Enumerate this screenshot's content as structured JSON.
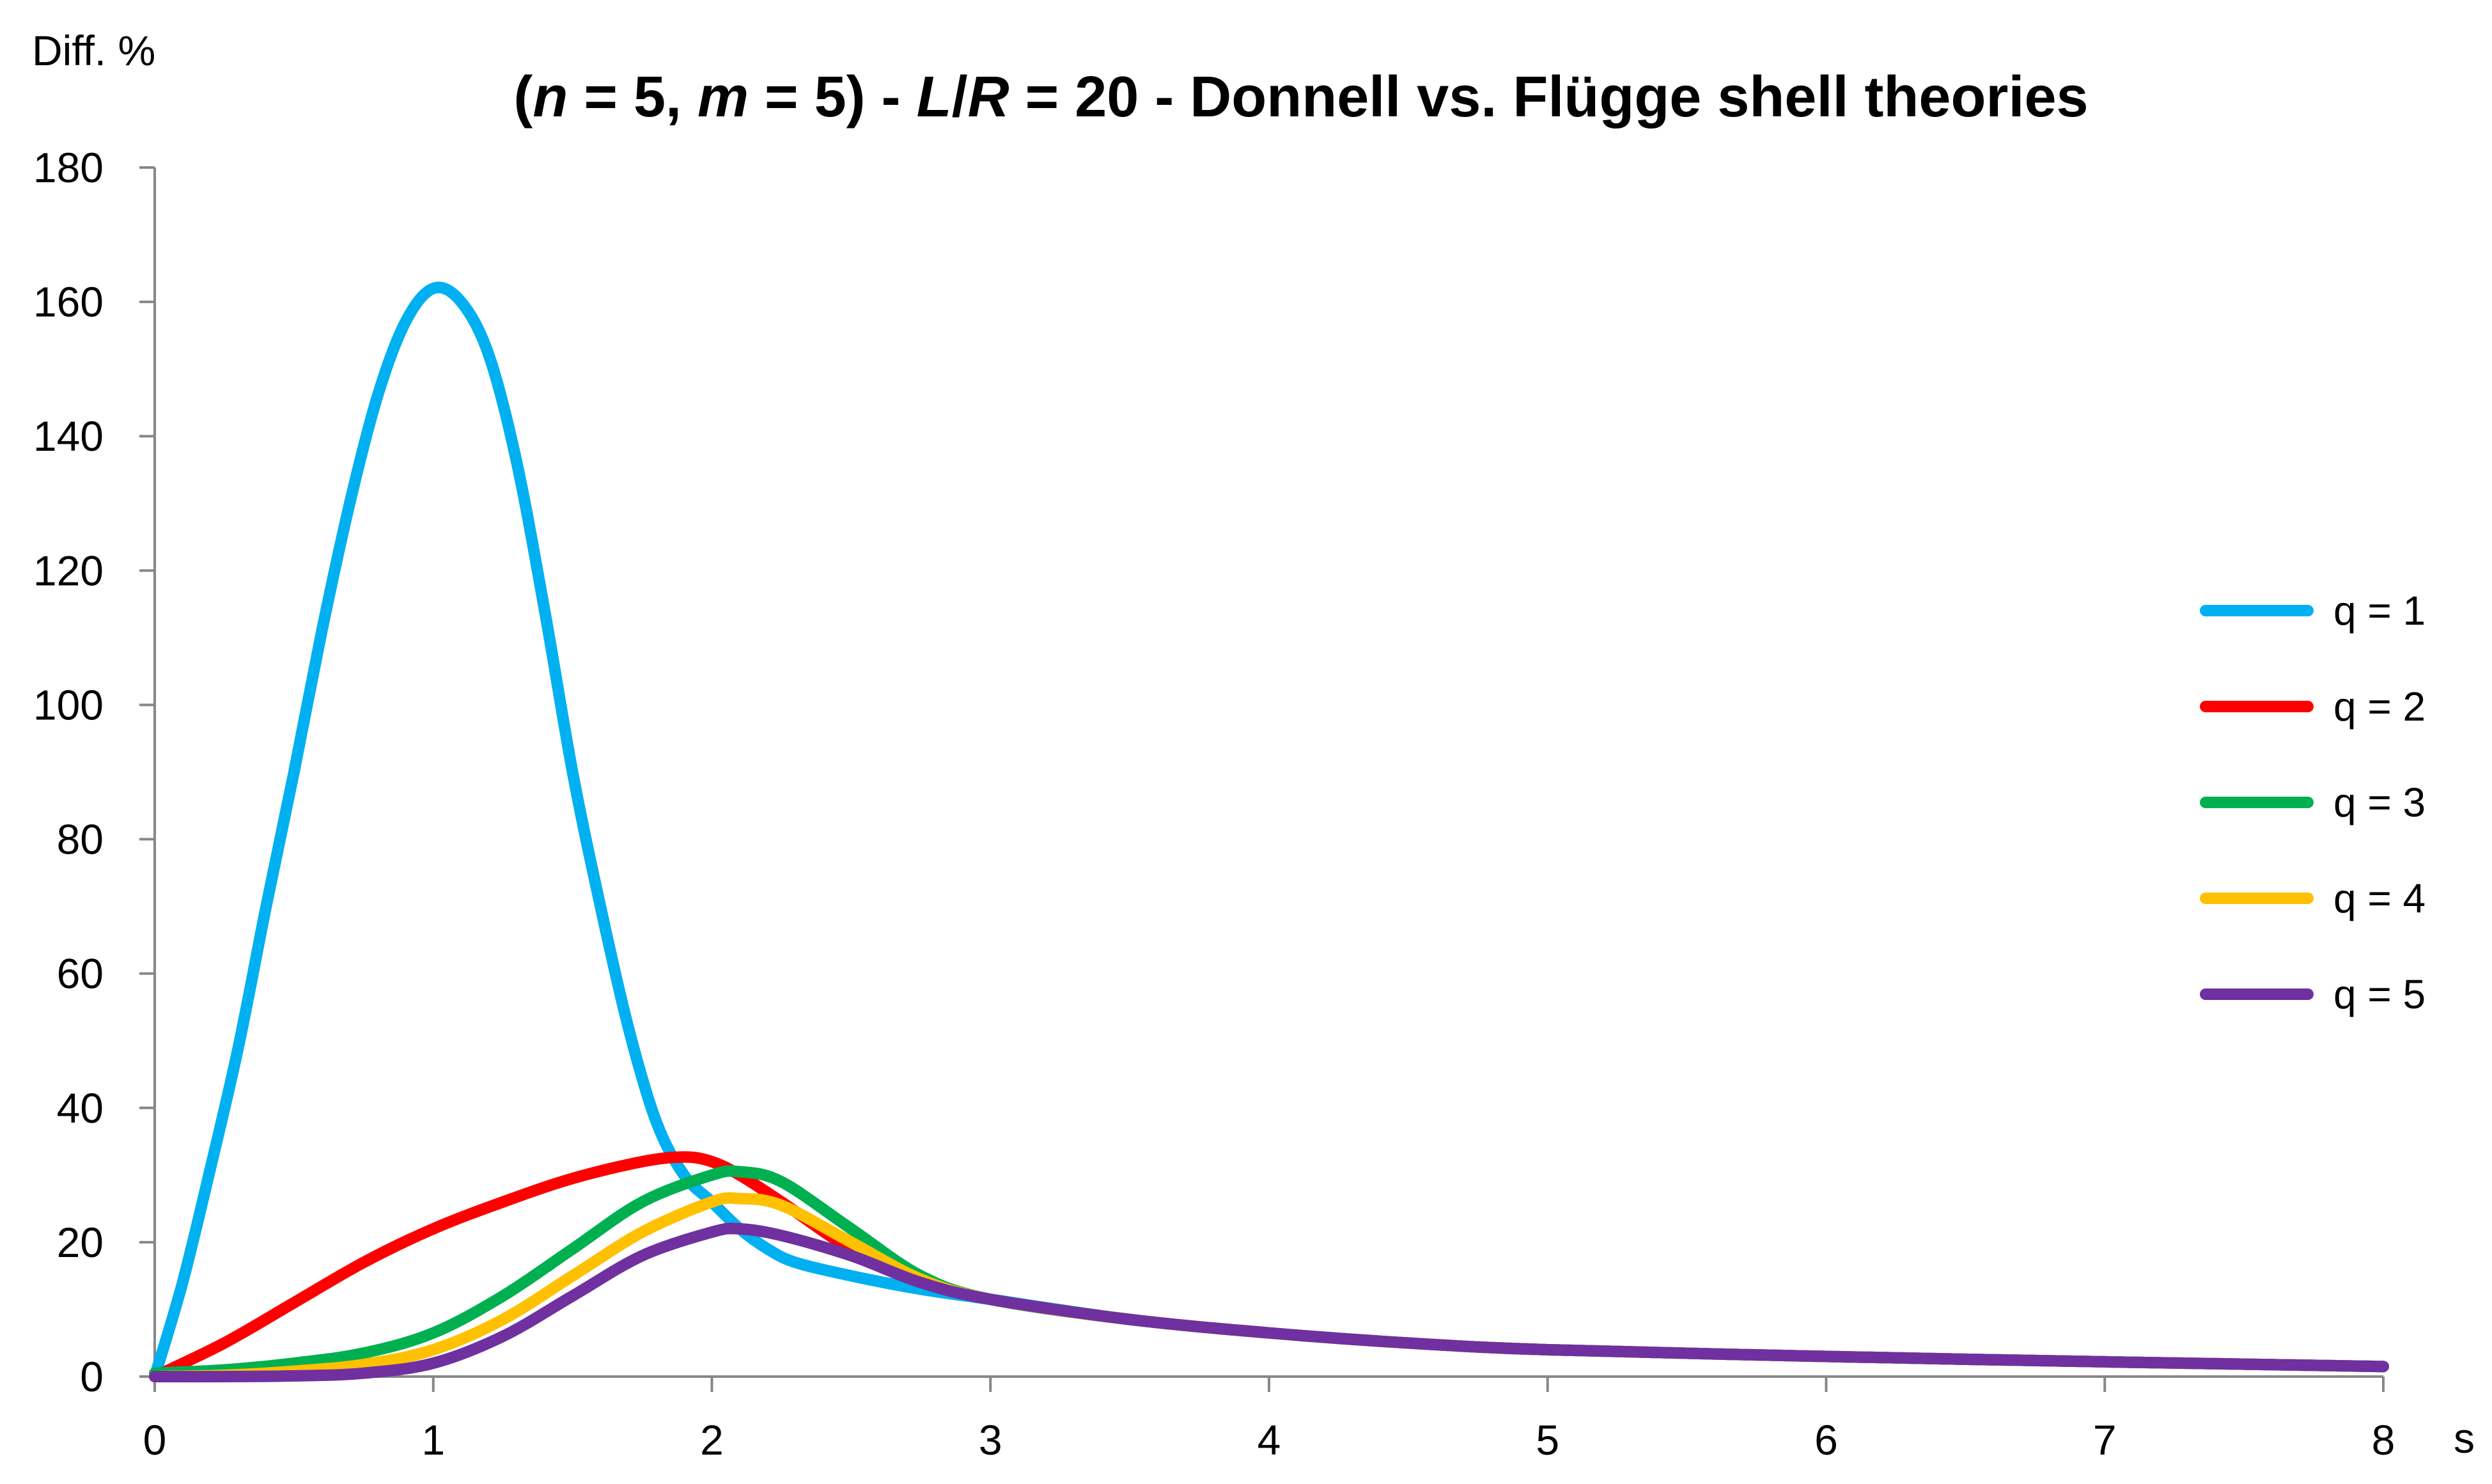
{
  "chart_data": {
    "type": "line",
    "title_parts": [
      {
        "text": "(",
        "italic": false
      },
      {
        "text": "n",
        "italic": true
      },
      {
        "text": " = 5, ",
        "italic": false
      },
      {
        "text": "m",
        "italic": true
      },
      {
        "text": " = 5) - ",
        "italic": false
      },
      {
        "text": "L",
        "italic": true
      },
      {
        "text": "/",
        "italic": false
      },
      {
        "text": "R",
        "italic": true
      },
      {
        "text": " = 20 - Donnell vs. Flügge shell theories",
        "italic": false
      }
    ],
    "xlabel": "s",
    "ylabel": "Diff. %",
    "xlim": [
      0,
      8
    ],
    "ylim": [
      0,
      180
    ],
    "xticks": [
      0,
      1,
      2,
      3,
      4,
      5,
      6,
      7,
      8
    ],
    "yticks": [
      0,
      20,
      40,
      60,
      80,
      100,
      120,
      140,
      160,
      180
    ],
    "grid": false,
    "legend_position": "right",
    "series": [
      {
        "name": "q = 1",
        "color": "#00B0F0",
        "points": [
          [
            0,
            0
          ],
          [
            0.1,
            14
          ],
          [
            0.2,
            31
          ],
          [
            0.3,
            49
          ],
          [
            0.4,
            70
          ],
          [
            0.5,
            90
          ],
          [
            0.6,
            111
          ],
          [
            0.7,
            130
          ],
          [
            0.8,
            146
          ],
          [
            0.9,
            157
          ],
          [
            1.0,
            162
          ],
          [
            1.1,
            160
          ],
          [
            1.2,
            152
          ],
          [
            1.3,
            136
          ],
          [
            1.4,
            114
          ],
          [
            1.5,
            90
          ],
          [
            1.6,
            70
          ],
          [
            1.7,
            52
          ],
          [
            1.8,
            38
          ],
          [
            1.9,
            30
          ],
          [
            2.0,
            26
          ],
          [
            2.1,
            22
          ],
          [
            2.2,
            19
          ],
          [
            2.3,
            17
          ],
          [
            2.5,
            15
          ],
          [
            2.75,
            13
          ],
          [
            3.0,
            11.5
          ],
          [
            3.5,
            8.5
          ],
          [
            4.0,
            6.5
          ],
          [
            4.5,
            5
          ],
          [
            5,
            4
          ],
          [
            6,
            3
          ],
          [
            7,
            2.2
          ],
          [
            8,
            1.5
          ]
        ]
      },
      {
        "name": "q = 2",
        "color": "#FF0000",
        "points": [
          [
            0,
            0
          ],
          [
            0.25,
            5
          ],
          [
            0.5,
            11
          ],
          [
            0.75,
            17
          ],
          [
            1.0,
            22
          ],
          [
            1.25,
            26
          ],
          [
            1.5,
            29.5
          ],
          [
            1.75,
            32
          ],
          [
            1.9,
            32.7
          ],
          [
            2.0,
            32
          ],
          [
            2.1,
            30
          ],
          [
            2.25,
            26
          ],
          [
            2.5,
            19
          ],
          [
            2.75,
            14.5
          ],
          [
            3.0,
            11.5
          ],
          [
            3.5,
            8.5
          ],
          [
            4.0,
            6.5
          ],
          [
            4.5,
            5
          ],
          [
            5,
            4
          ],
          [
            6,
            3
          ],
          [
            7,
            2.2
          ],
          [
            8,
            1.5
          ]
        ]
      },
      {
        "name": "q = 3",
        "color": "#00B050",
        "points": [
          [
            0,
            0.5
          ],
          [
            0.25,
            1
          ],
          [
            0.5,
            2
          ],
          [
            0.75,
            3.5
          ],
          [
            1.0,
            6.5
          ],
          [
            1.25,
            12
          ],
          [
            1.5,
            19
          ],
          [
            1.75,
            26
          ],
          [
            2.0,
            30
          ],
          [
            2.1,
            30.5
          ],
          [
            2.25,
            29
          ],
          [
            2.5,
            22
          ],
          [
            2.75,
            15
          ],
          [
            3.0,
            11.5
          ],
          [
            3.5,
            8.5
          ],
          [
            4.0,
            6.5
          ],
          [
            4.5,
            5
          ],
          [
            5,
            4
          ],
          [
            6,
            3
          ],
          [
            7,
            2.2
          ],
          [
            8,
            1.5
          ]
        ]
      },
      {
        "name": "q = 4",
        "color": "#FFC000",
        "points": [
          [
            0,
            0
          ],
          [
            0.25,
            0.2
          ],
          [
            0.5,
            0.8
          ],
          [
            0.75,
            1.8
          ],
          [
            1.0,
            4
          ],
          [
            1.25,
            8.5
          ],
          [
            1.5,
            15
          ],
          [
            1.75,
            21.5
          ],
          [
            2.0,
            26
          ],
          [
            2.1,
            26.5
          ],
          [
            2.25,
            25.5
          ],
          [
            2.5,
            20
          ],
          [
            2.75,
            14.5
          ],
          [
            3.0,
            11.5
          ],
          [
            3.5,
            8.5
          ],
          [
            4.0,
            6.5
          ],
          [
            4.5,
            5
          ],
          [
            5,
            4
          ],
          [
            6,
            3
          ],
          [
            7,
            2.2
          ],
          [
            8,
            1.5
          ]
        ]
      },
      {
        "name": "q = 5",
        "color": "#7030A0",
        "points": [
          [
            0,
            0
          ],
          [
            0.25,
            0
          ],
          [
            0.5,
            0.1
          ],
          [
            0.75,
            0.5
          ],
          [
            1.0,
            2
          ],
          [
            1.25,
            6
          ],
          [
            1.5,
            12
          ],
          [
            1.75,
            18
          ],
          [
            2.0,
            21.5
          ],
          [
            2.1,
            22
          ],
          [
            2.25,
            21
          ],
          [
            2.5,
            18
          ],
          [
            2.75,
            14
          ],
          [
            3.0,
            11.5
          ],
          [
            3.5,
            8.5
          ],
          [
            4.0,
            6.5
          ],
          [
            4.5,
            5
          ],
          [
            5,
            4
          ],
          [
            6,
            3
          ],
          [
            7,
            2.2
          ],
          [
            8,
            1.5
          ]
        ]
      }
    ]
  }
}
